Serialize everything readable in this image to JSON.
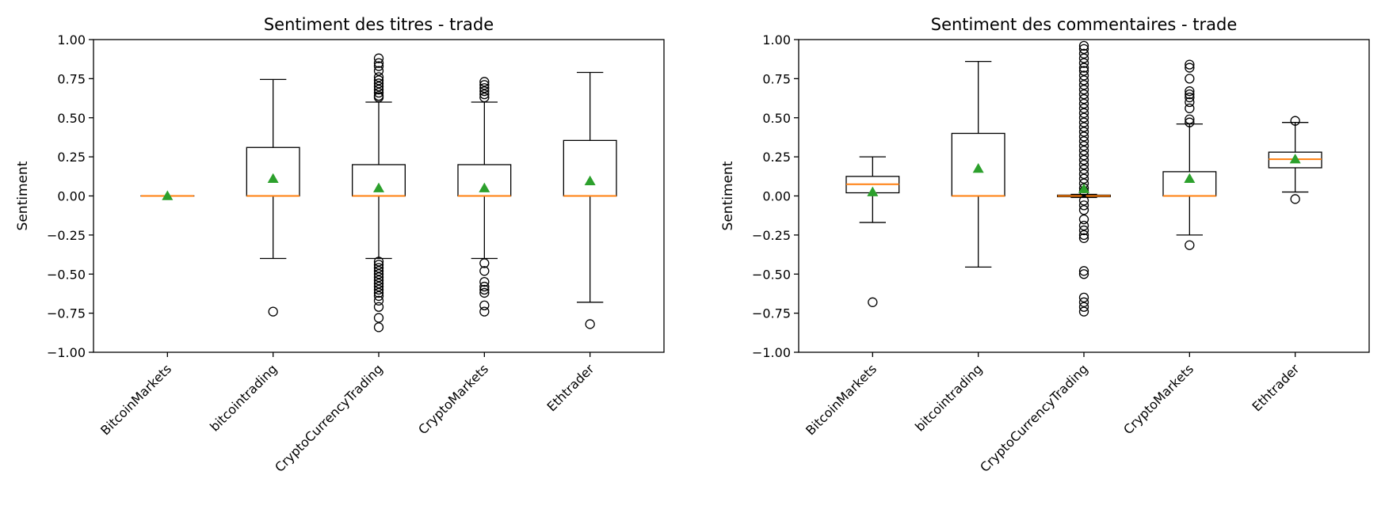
{
  "chart_data": [
    {
      "type": "box",
      "title": "Sentiment des titres - trade",
      "ylabel": "Sentiment",
      "xlabel": "",
      "ylim": [
        -1.0,
        1.0
      ],
      "yticks": [
        "1.00",
        "0.75",
        "0.50",
        "0.25",
        "0.00",
        "−0.25",
        "−0.50",
        "−0.75",
        "−1.00"
      ],
      "yticks_values": [
        1.0,
        0.75,
        0.5,
        0.25,
        0.0,
        -0.25,
        -0.5,
        -0.75,
        -1.0
      ],
      "grid": false,
      "categories": [
        "BitcoinMarkets",
        "bitcointrading",
        "CryptoCurrencyTrading",
        "CryptoMarkets",
        "Ethtrader"
      ],
      "boxes": [
        {
          "q1": 0.0,
          "median": 0.0,
          "q3": 0.0,
          "whislo": 0.0,
          "whishi": 0.0,
          "mean": 0.0,
          "fliers": []
        },
        {
          "q1": 0.0,
          "median": 0.0,
          "q3": 0.31,
          "whislo": -0.4,
          "whishi": 0.745,
          "mean": 0.11,
          "fliers": [
            -0.74
          ]
        },
        {
          "q1": 0.0,
          "median": 0.0,
          "q3": 0.2,
          "whislo": -0.4,
          "whishi": 0.6,
          "mean": 0.05,
          "fliers": [
            0.63,
            0.64,
            0.66,
            0.68,
            0.7,
            0.72,
            0.74,
            0.76,
            0.8,
            0.83,
            0.85,
            0.88,
            -0.42,
            -0.44,
            -0.46,
            -0.48,
            -0.5,
            -0.52,
            -0.54,
            -0.56,
            -0.58,
            -0.6,
            -0.62,
            -0.64,
            -0.67,
            -0.71,
            -0.78,
            -0.84
          ]
        },
        {
          "q1": 0.0,
          "median": 0.0,
          "q3": 0.2,
          "whislo": -0.4,
          "whishi": 0.6,
          "mean": 0.05,
          "fliers": [
            0.63,
            0.65,
            0.67,
            0.69,
            0.71,
            0.73,
            -0.43,
            -0.48,
            -0.55,
            -0.58,
            -0.6,
            -0.62,
            -0.7,
            -0.74
          ]
        },
        {
          "q1": 0.0,
          "median": 0.0,
          "q3": 0.355,
          "whislo": -0.68,
          "whishi": 0.79,
          "mean": 0.095,
          "fliers": [
            -0.82
          ]
        }
      ]
    },
    {
      "type": "box",
      "title": "Sentiment des commentaires - trade",
      "ylabel": "Sentiment",
      "xlabel": "",
      "ylim": [
        -1.0,
        1.0
      ],
      "yticks": [
        "1.00",
        "0.75",
        "0.50",
        "0.25",
        "0.00",
        "−0.25",
        "−0.50",
        "−0.75",
        "−1.00"
      ],
      "yticks_values": [
        1.0,
        0.75,
        0.5,
        0.25,
        0.0,
        -0.25,
        -0.5,
        -0.75,
        -1.0
      ],
      "grid": false,
      "categories": [
        "BitcoinMarkets",
        "bitcointrading",
        "CryptoCurrencyTrading",
        "CryptoMarkets",
        "Ethtrader"
      ],
      "boxes": [
        {
          "q1": 0.02,
          "median": 0.075,
          "q3": 0.125,
          "whislo": -0.17,
          "whishi": 0.25,
          "mean": 0.025,
          "fliers": [
            -0.68
          ]
        },
        {
          "q1": 0.0,
          "median": 0.0,
          "q3": 0.4,
          "whislo": -0.455,
          "whishi": 0.86,
          "mean": 0.175,
          "fliers": []
        },
        {
          "q1": -0.005,
          "median": 0.0,
          "q3": 0.005,
          "whislo": -0.01,
          "whishi": 0.01,
          "mean": 0.045,
          "fliers": [
            0.96,
            0.94,
            0.91,
            0.88,
            0.85,
            0.82,
            0.8,
            0.77,
            0.74,
            0.71,
            0.68,
            0.65,
            0.62,
            0.59,
            0.56,
            0.53,
            0.5,
            0.47,
            0.44,
            0.41,
            0.38,
            0.35,
            0.32,
            0.29,
            0.26,
            0.23,
            0.2,
            0.17,
            0.14,
            0.11,
            0.08,
            0.05,
            0.03,
            -0.03,
            -0.06,
            -0.09,
            -0.15,
            -0.19,
            -0.22,
            -0.25,
            -0.27,
            -0.48,
            -0.5,
            -0.65,
            -0.68,
            -0.71,
            -0.74
          ]
        },
        {
          "q1": 0.0,
          "median": 0.0,
          "q3": 0.155,
          "whislo": -0.25,
          "whishi": 0.46,
          "mean": 0.11,
          "fliers": [
            0.47,
            0.49,
            0.56,
            0.6,
            0.63,
            0.65,
            0.67,
            0.75,
            0.82,
            0.84,
            -0.315
          ]
        },
        {
          "q1": 0.18,
          "median": 0.235,
          "q3": 0.28,
          "whislo": 0.025,
          "whishi": 0.47,
          "mean": 0.235,
          "fliers": [
            0.48,
            -0.02
          ]
        }
      ]
    }
  ]
}
